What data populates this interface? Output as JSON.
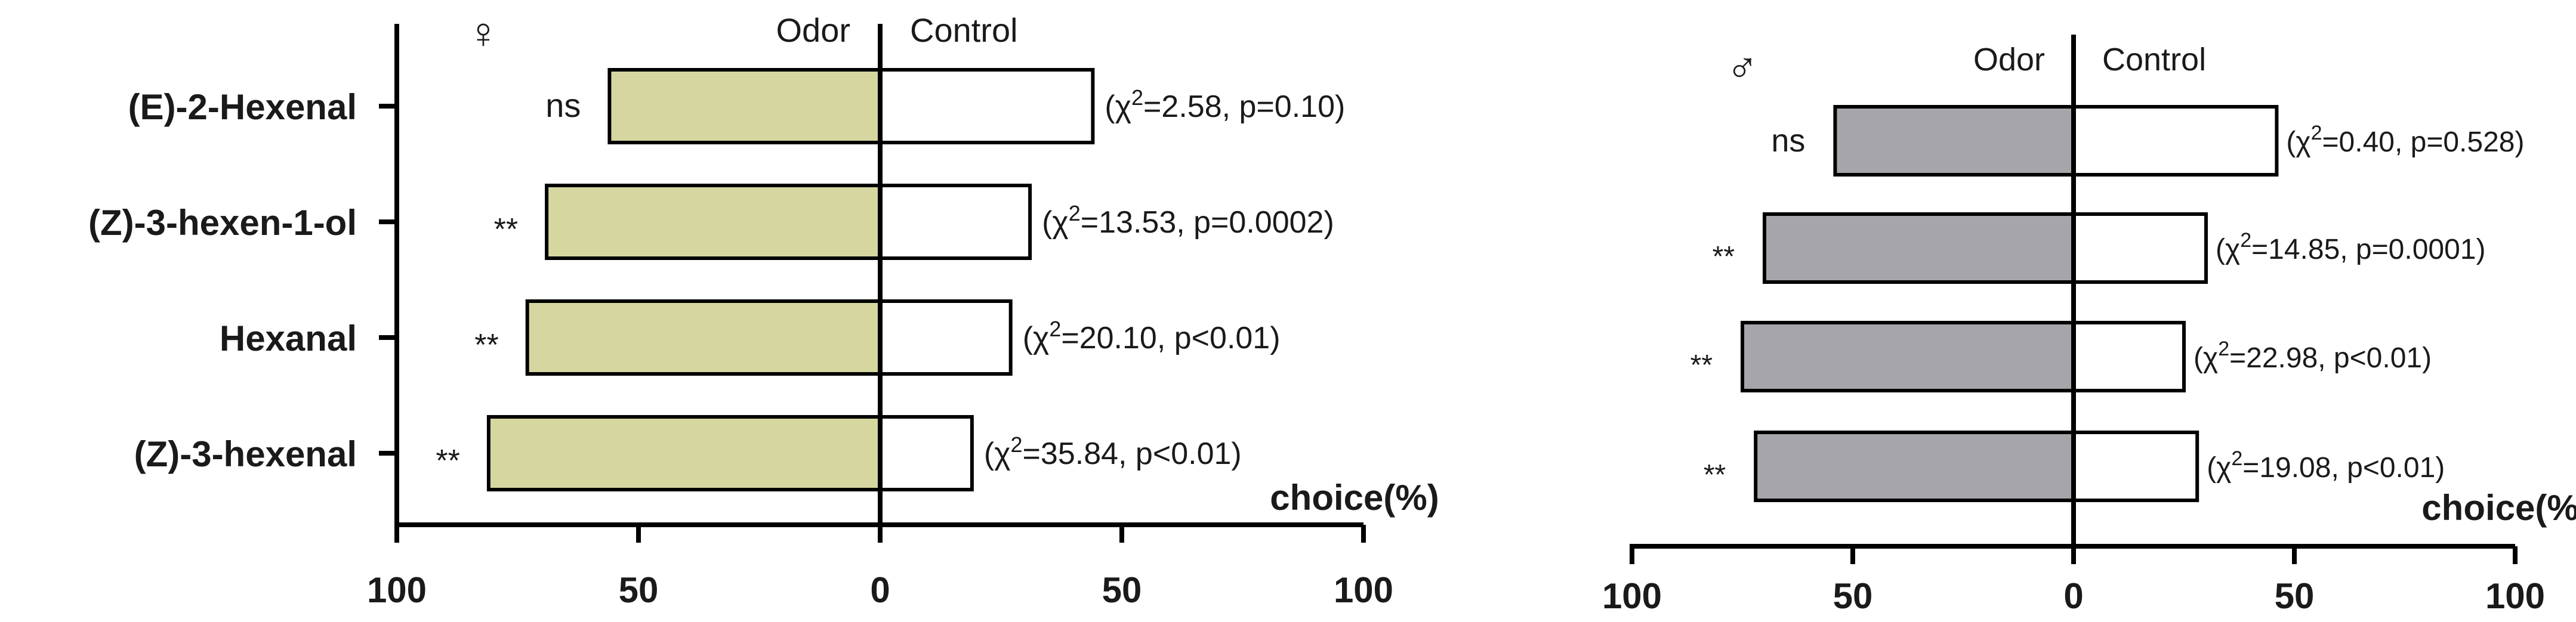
{
  "chart_data": [
    {
      "type": "bar",
      "orientation": "horizontal-diverging",
      "sex_symbol": "♀",
      "categories": [
        "(E)-2-Hexenal",
        "(Z)-3-hexen-1-ol",
        "Hexanal",
        "(Z)-3-hexenal"
      ],
      "series": [
        {
          "name": "Odor",
          "values": [
            56,
            69,
            73,
            81
          ],
          "color": "#d6d6a0"
        },
        {
          "name": "Control",
          "values": [
            44,
            31,
            27,
            19
          ],
          "color": "#ffffff"
        }
      ],
      "significance": [
        "ns",
        "**",
        "**",
        "**"
      ],
      "stats": [
        {
          "pre": "(χ",
          "sup": "2",
          "post": "=2.58,  p=0.10)"
        },
        {
          "pre": "(χ",
          "sup": "2",
          "post": "=13.53,  p=0.0002)"
        },
        {
          "pre": "(χ",
          "sup": "2",
          "post": "=20.10,  p<0.01)"
        },
        {
          "pre": "(χ",
          "sup": "2",
          "post": "=35.84,  p<0.01)"
        }
      ],
      "side_labels": {
        "left": "Odor",
        "right": "Control"
      },
      "xlabel": "choice(%)",
      "xticks": [
        "100",
        "50",
        "0",
        "50",
        "100"
      ],
      "xlim": [
        -100,
        100
      ]
    },
    {
      "type": "bar",
      "orientation": "horizontal-diverging",
      "sex_symbol": "♂",
      "categories": [
        "(E)-2-Hexenal",
        "(Z)-3-hexen-1-ol",
        "Hexanal",
        "(Z)-3-hexenal"
      ],
      "series": [
        {
          "name": "Odor",
          "values": [
            54,
            70,
            75,
            72
          ],
          "color": "#a6a6aa"
        },
        {
          "name": "Control",
          "values": [
            46,
            30,
            25,
            28
          ],
          "color": "#ffffff"
        }
      ],
      "significance": [
        "ns",
        "**",
        "**",
        "**"
      ],
      "stats": [
        {
          "pre": "(χ",
          "sup": "2",
          "post": "=0.40,  p=0.528)"
        },
        {
          "pre": "(χ",
          "sup": "2",
          "post": "=14.85,  p=0.0001)"
        },
        {
          "pre": "(χ",
          "sup": "2",
          "post": "=22.98,  p<0.01)"
        },
        {
          "pre": "(χ",
          "sup": "2",
          "post": "=19.08,  p<0.01)"
        }
      ],
      "side_labels": {
        "left": "Odor",
        "right": "Control"
      },
      "xlabel": "choice(%)",
      "xticks": [
        "100",
        "50",
        "0",
        "50",
        "100"
      ],
      "xlim": [
        -100,
        100
      ]
    }
  ]
}
